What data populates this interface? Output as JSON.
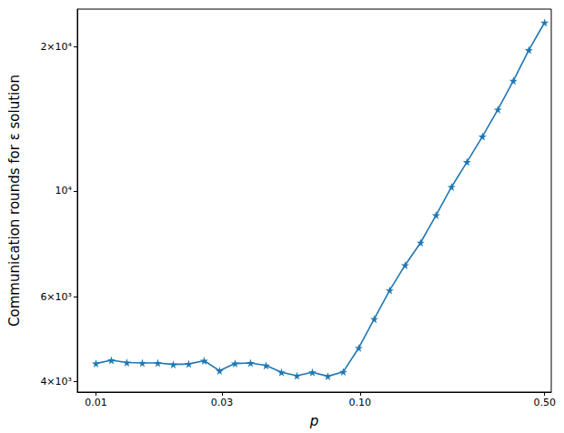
{
  "chart_data": {
    "type": "line",
    "x_label": "p",
    "y_label": "Communication rounds for ε solution",
    "log": true,
    "grid": false,
    "color": "#1f77b4",
    "marker": "star",
    "line_style": "solid",
    "x": [
      0.01,
      0.01144,
      0.01309,
      0.01498,
      0.01715,
      0.01962,
      0.02245,
      0.02569,
      0.0294,
      0.03364,
      0.0385,
      0.04405,
      0.05041,
      0.05768,
      0.06601,
      0.07553,
      0.08643,
      0.0989,
      0.1132,
      0.1295,
      0.1482,
      0.1696,
      0.1941,
      0.2221,
      0.2541,
      0.2908,
      0.3327,
      0.3807,
      0.4357,
      0.5
    ],
    "values": [
      4360,
      4430,
      4380,
      4370,
      4370,
      4340,
      4350,
      4420,
      4210,
      4360,
      4370,
      4320,
      4180,
      4110,
      4180,
      4100,
      4190,
      4700,
      5400,
      6200,
      7000,
      7800,
      8900,
      10200,
      11500,
      13000,
      14800,
      17000,
      19700,
      22500
    ],
    "xlim": [
      0.0085,
      0.53
    ],
    "xticks": [
      0.01,
      0.03,
      {
        "value": 0.1,
        "label": "0.10"
      },
      {
        "value": 0.5,
        "label": "0.50"
      }
    ],
    "ylim": [
      3800,
      24000
    ],
    "yticks": [
      {
        "value": 4000,
        "label": "4×10³"
      },
      {
        "value": 6000,
        "label": "6×10³"
      },
      {
        "value": 10000,
        "label": "10⁴"
      },
      {
        "value": 20000,
        "label": "2×10⁴"
      }
    ]
  }
}
